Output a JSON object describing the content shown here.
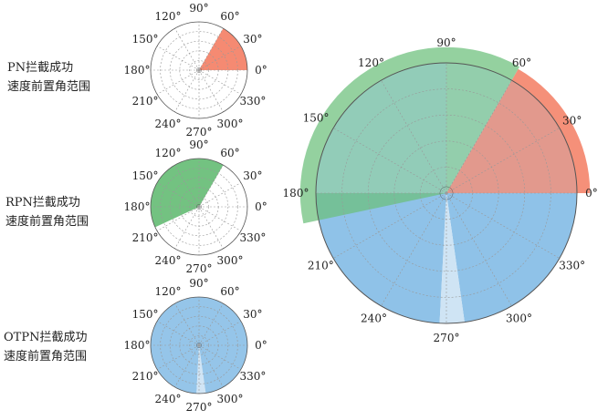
{
  "colors": {
    "pn": "#f4846a",
    "rpn": "#6bbf7a",
    "otpn_main": "#8fc2e8",
    "otpn_light": "#cfe4f4",
    "ring": "#555555",
    "grid": "#999999"
  },
  "angle_labels": [
    "0°",
    "30°",
    "60°",
    "90°",
    "120°",
    "150°",
    "180°",
    "210°",
    "240°",
    "270°",
    "300°",
    "330°"
  ],
  "panels": {
    "pn": {
      "caption_line1": "PN拦截成功",
      "caption_line2": "速度前置角范围"
    },
    "rpn": {
      "caption_line1": "RPN拦截成功",
      "caption_line2": "速度前置角范围"
    },
    "otpn": {
      "caption_line1": "OTPN拦截成功",
      "caption_line2": "速度前置角范围"
    }
  },
  "sectors": {
    "pn": [
      {
        "start": 0,
        "end": 60,
        "color": "pn"
      }
    ],
    "rpn": [
      {
        "start": 60,
        "end": 205,
        "color": "rpn"
      }
    ],
    "otpn": [
      {
        "start": 90,
        "end": 267,
        "color": "otpn_main"
      },
      {
        "start": 267,
        "end": 278,
        "color": "otpn_light"
      },
      {
        "start": 278,
        "end": 360,
        "color": "otpn_main"
      },
      {
        "start": 0,
        "end": 90,
        "color": "otpn_main"
      }
    ]
  }
}
